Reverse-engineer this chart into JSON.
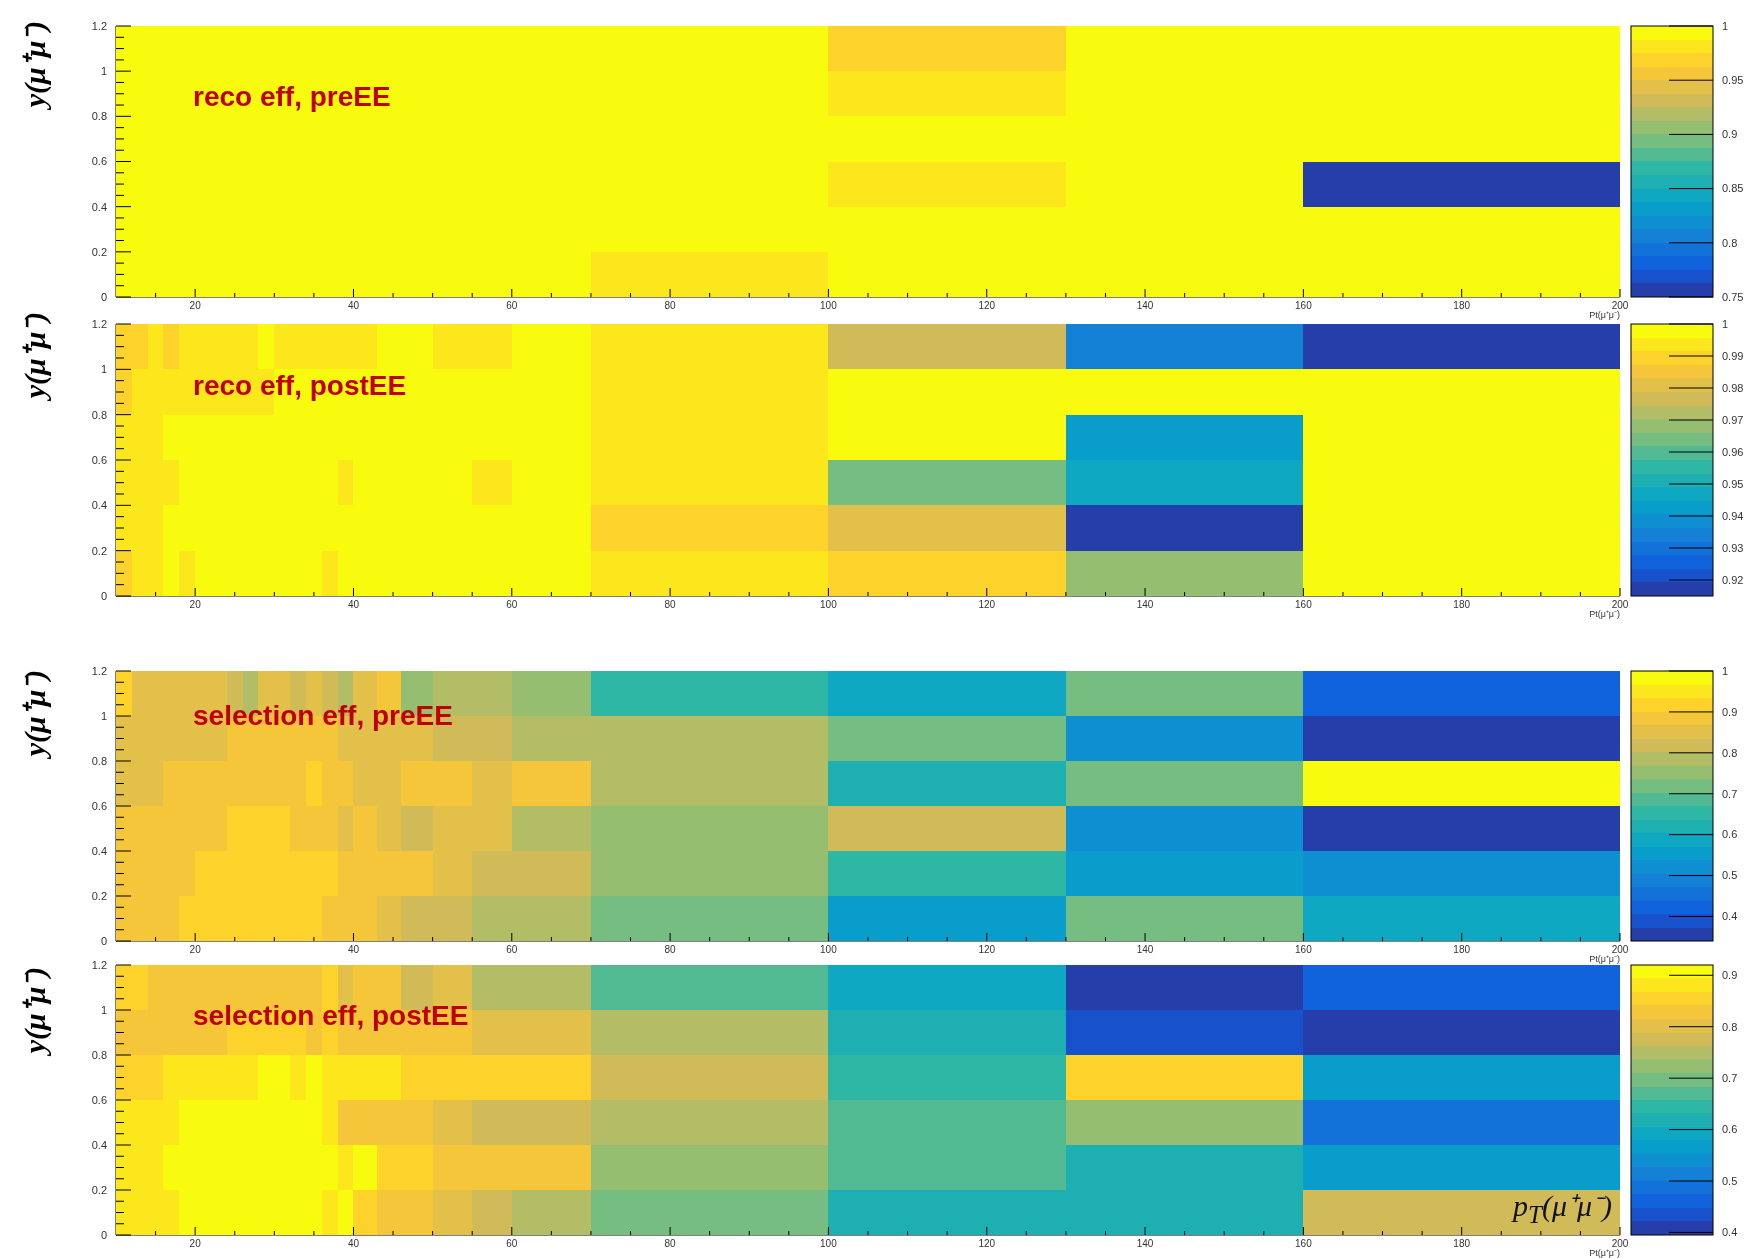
{
  "chart_data": [
    {
      "type": "heatmap",
      "title": "reco eff, preEE",
      "xlabel": "Pt(μ⁺μ⁻)",
      "ylabel": "y(μ⁺μ⁻)",
      "x": [
        11,
        13,
        15,
        17,
        19,
        21,
        23,
        25,
        27,
        29,
        31,
        33,
        35,
        37,
        39,
        41.5,
        44.5,
        48,
        52.5,
        57.5,
        65,
        85,
        115,
        145,
        180
      ],
      "xlim": [
        10,
        200
      ],
      "xticks": [
        {
          "value": 15,
          "label": null
        },
        20,
        {
          "value": 25,
          "label": null
        },
        {
          "value": 30,
          "label": null
        },
        {
          "value": 35,
          "label": null
        },
        40,
        {
          "value": 45,
          "label": null
        },
        {
          "value": 50,
          "label": null
        },
        {
          "value": 55,
          "label": null
        },
        60,
        {
          "value": 65,
          "label": null
        },
        {
          "value": 70,
          "label": null
        },
        {
          "value": 75,
          "label": null
        },
        80,
        {
          "value": 85,
          "label": null
        },
        {
          "value": 90,
          "label": null
        },
        {
          "value": 95,
          "label": null
        },
        100,
        {
          "value": 105,
          "label": null
        },
        {
          "value": 110,
          "label": null
        },
        {
          "value": 115,
          "label": null
        },
        120,
        {
          "value": 125,
          "label": null
        },
        {
          "value": 130,
          "label": null
        },
        {
          "value": 135,
          "label": null
        },
        140,
        {
          "value": 145,
          "label": null
        },
        {
          "value": 150,
          "label": null
        },
        {
          "value": 155,
          "label": null
        },
        160,
        {
          "value": 165,
          "label": null
        },
        {
          "value": 170,
          "label": null
        },
        {
          "value": 175,
          "label": null
        },
        180,
        {
          "value": 185,
          "label": null
        },
        {
          "value": 190,
          "label": null
        },
        {
          "value": 195,
          "label": null
        },
        200
      ],
      "ylim": [
        0,
        1.2
      ],
      "yticks": [
        0,
        {
          "value": 0.05,
          "label": null
        },
        {
          "value": 0.1,
          "label": null
        },
        {
          "value": 0.15,
          "label": null
        },
        0.2,
        {
          "value": 0.25,
          "label": null
        },
        {
          "value": 0.3,
          "label": null
        },
        {
          "value": 0.35,
          "label": null
        },
        0.4,
        {
          "value": 0.45,
          "label": null
        },
        {
          "value": 0.5,
          "label": null
        },
        {
          "value": 0.55,
          "label": null
        },
        0.6,
        {
          "value": 0.65,
          "label": null
        },
        {
          "value": 0.7,
          "label": null
        },
        {
          "value": 0.75,
          "label": null
        },
        0.8,
        {
          "value": 0.85,
          "label": null
        },
        {
          "value": 0.9,
          "label": null
        },
        {
          "value": 0.95,
          "label": null
        },
        1,
        {
          "value": 1.05,
          "label": null
        },
        {
          "value": 1.1,
          "label": null
        },
        {
          "value": 1.15,
          "label": null
        },
        1.2
      ],
      "clim": [
        0.75,
        1
      ],
      "cticks": [
        0.75,
        0.8,
        0.85,
        0.9,
        0.95,
        1
      ],
      "cells": [
        [
          0.994,
          0.994,
          0.994,
          0.994,
          0.994,
          0.994,
          0.994,
          0.994,
          0.994,
          0.994,
          0.994,
          0.994,
          0.994,
          0.994,
          0.994,
          0.994,
          0.994,
          0.994,
          0.994,
          0.994,
          0.994,
          0.994,
          0.969,
          0.994,
          0.994
        ],
        [
          0.994,
          0.994,
          0.994,
          0.994,
          0.994,
          0.994,
          0.994,
          0.994,
          0.994,
          0.994,
          0.994,
          0.994,
          0.994,
          0.994,
          0.994,
          0.994,
          0.994,
          0.994,
          0.994,
          0.994,
          0.994,
          0.994,
          0.981,
          0.994,
          0.994
        ],
        [
          0.994,
          0.994,
          0.994,
          0.994,
          0.994,
          0.994,
          0.994,
          0.994,
          0.994,
          0.994,
          0.994,
          0.994,
          0.994,
          0.994,
          0.994,
          0.994,
          0.994,
          0.994,
          0.994,
          0.994,
          0.994,
          0.994,
          0.994,
          0.994,
          0.994
        ],
        [
          0.994,
          0.994,
          0.994,
          0.994,
          0.994,
          0.994,
          0.994,
          0.994,
          0.994,
          0.994,
          0.994,
          0.994,
          0.994,
          0.994,
          0.994,
          0.994,
          0.994,
          0.994,
          0.994,
          0.994,
          0.994,
          0.994,
          0.981,
          0.994,
          0.756
        ],
        [
          0.994,
          0.994,
          0.994,
          0.994,
          0.994,
          0.994,
          0.994,
          0.994,
          0.994,
          0.994,
          0.994,
          0.994,
          0.994,
          0.994,
          0.994,
          0.994,
          0.994,
          0.994,
          0.994,
          0.994,
          0.994,
          0.994,
          0.994,
          0.994,
          0.994
        ],
        [
          0.994,
          0.994,
          0.994,
          0.994,
          0.994,
          0.994,
          0.994,
          0.994,
          0.994,
          0.994,
          0.994,
          0.994,
          0.994,
          0.994,
          0.994,
          0.994,
          0.994,
          0.994,
          0.994,
          0.994,
          0.994,
          0.981,
          0.994,
          0.994,
          0.994
        ]
      ]
    },
    {
      "type": "heatmap",
      "title": "reco eff, postEE",
      "xlabel": "Pt(μ⁺μ⁻)",
      "ylabel": "y(μ⁺μ⁻)",
      "x": [
        11,
        13,
        15,
        17,
        19,
        21,
        23,
        25,
        27,
        29,
        31,
        33,
        35,
        37,
        39,
        41.5,
        44.5,
        48,
        52.5,
        57.5,
        65,
        85,
        115,
        145,
        180
      ],
      "xlim": [
        10,
        200
      ],
      "xticks": [
        {
          "value": 15,
          "label": null
        },
        20,
        {
          "value": 25,
          "label": null
        },
        {
          "value": 30,
          "label": null
        },
        {
          "value": 35,
          "label": null
        },
        40,
        {
          "value": 45,
          "label": null
        },
        {
          "value": 50,
          "label": null
        },
        {
          "value": 55,
          "label": null
        },
        60,
        {
          "value": 65,
          "label": null
        },
        {
          "value": 70,
          "label": null
        },
        {
          "value": 75,
          "label": null
        },
        80,
        {
          "value": 85,
          "label": null
        },
        {
          "value": 90,
          "label": null
        },
        {
          "value": 95,
          "label": null
        },
        100,
        {
          "value": 105,
          "label": null
        },
        {
          "value": 110,
          "label": null
        },
        {
          "value": 115,
          "label": null
        },
        120,
        {
          "value": 125,
          "label": null
        },
        {
          "value": 130,
          "label": null
        },
        {
          "value": 135,
          "label": null
        },
        140,
        {
          "value": 145,
          "label": null
        },
        {
          "value": 150,
          "label": null
        },
        {
          "value": 155,
          "label": null
        },
        160,
        {
          "value": 165,
          "label": null
        },
        {
          "value": 170,
          "label": null
        },
        {
          "value": 175,
          "label": null
        },
        180,
        {
          "value": 185,
          "label": null
        },
        {
          "value": 190,
          "label": null
        },
        {
          "value": 195,
          "label": null
        },
        200
      ],
      "ylim": [
        0,
        1.2
      ],
      "yticks": [
        0,
        {
          "value": 0.05,
          "label": null
        },
        {
          "value": 0.1,
          "label": null
        },
        {
          "value": 0.15,
          "label": null
        },
        0.2,
        {
          "value": 0.25,
          "label": null
        },
        {
          "value": 0.3,
          "label": null
        },
        {
          "value": 0.35,
          "label": null
        },
        0.4,
        {
          "value": 0.45,
          "label": null
        },
        {
          "value": 0.5,
          "label": null
        },
        {
          "value": 0.55,
          "label": null
        },
        0.6,
        {
          "value": 0.65,
          "label": null
        },
        {
          "value": 0.7,
          "label": null
        },
        {
          "value": 0.75,
          "label": null
        },
        0.8,
        {
          "value": 0.85,
          "label": null
        },
        {
          "value": 0.9,
          "label": null
        },
        {
          "value": 0.95,
          "label": null
        },
        1,
        {
          "value": 1.05,
          "label": null
        },
        {
          "value": 1.1,
          "label": null
        },
        {
          "value": 1.15,
          "label": null
        },
        1.2
      ],
      "clim": [
        0.915,
        1
      ],
      "cticks": [
        0.92,
        0.93,
        0.94,
        0.95,
        0.96,
        0.97,
        0.98,
        0.99,
        1
      ],
      "cells": [
        [
          0.989,
          0.989,
          0.994,
          0.989,
          0.994,
          0.994,
          0.994,
          0.994,
          0.994,
          0.998,
          0.994,
          0.994,
          0.994,
          0.994,
          0.994,
          0.994,
          0.998,
          0.998,
          0.994,
          0.994,
          0.998,
          0.994,
          0.977,
          0.934,
          0.917
        ],
        [
          0.989,
          0.994,
          0.994,
          0.994,
          0.994,
          0.994,
          0.994,
          0.994,
          0.994,
          0.994,
          0.998,
          0.998,
          0.998,
          0.998,
          0.998,
          0.998,
          0.998,
          0.998,
          0.998,
          0.998,
          0.998,
          0.994,
          0.998,
          0.998,
          0.998
        ],
        [
          0.994,
          0.994,
          0.994,
          0.998,
          0.998,
          0.998,
          0.998,
          0.998,
          0.998,
          0.998,
          0.998,
          0.998,
          0.998,
          0.998,
          0.998,
          0.998,
          0.998,
          0.998,
          0.998,
          0.998,
          0.998,
          0.994,
          0.998,
          0.943,
          0.998
        ],
        [
          0.994,
          0.994,
          0.994,
          0.994,
          0.998,
          0.998,
          0.998,
          0.998,
          0.998,
          0.998,
          0.998,
          0.998,
          0.998,
          0.998,
          0.994,
          0.998,
          0.998,
          0.998,
          0.998,
          0.994,
          0.998,
          0.994,
          0.964,
          0.947,
          0.998
        ],
        [
          0.994,
          0.994,
          0.994,
          0.998,
          0.998,
          0.998,
          0.998,
          0.998,
          0.998,
          0.998,
          0.998,
          0.998,
          0.998,
          0.998,
          0.998,
          0.998,
          0.998,
          0.998,
          0.998,
          0.998,
          0.998,
          0.989,
          0.981,
          0.917,
          0.998
        ],
        [
          0.989,
          0.994,
          0.994,
          0.998,
          0.994,
          0.998,
          0.998,
          0.998,
          0.998,
          0.998,
          0.998,
          0.998,
          0.998,
          0.994,
          0.998,
          0.998,
          0.998,
          0.998,
          0.998,
          0.998,
          0.998,
          0.994,
          0.989,
          0.968,
          0.998
        ]
      ]
    },
    {
      "type": "heatmap",
      "title": "selection eff, preEE",
      "xlabel": "Pt(μ⁺μ⁻)",
      "ylabel": "y(μ⁺μ⁻)",
      "x": [
        11,
        13,
        15,
        17,
        19,
        21,
        23,
        25,
        27,
        29,
        31,
        33,
        35,
        37,
        39,
        41.5,
        44.5,
        48,
        52.5,
        57.5,
        65,
        85,
        115,
        145,
        180
      ],
      "xlim": [
        10,
        200
      ],
      "xticks": [
        {
          "value": 15,
          "label": null
        },
        20,
        {
          "value": 25,
          "label": null
        },
        {
          "value": 30,
          "label": null
        },
        {
          "value": 35,
          "label": null
        },
        40,
        {
          "value": 45,
          "label": null
        },
        {
          "value": 50,
          "label": null
        },
        {
          "value": 55,
          "label": null
        },
        60,
        {
          "value": 65,
          "label": null
        },
        {
          "value": 70,
          "label": null
        },
        {
          "value": 75,
          "label": null
        },
        80,
        {
          "value": 85,
          "label": null
        },
        {
          "value": 90,
          "label": null
        },
        {
          "value": 95,
          "label": null
        },
        100,
        {
          "value": 105,
          "label": null
        },
        {
          "value": 110,
          "label": null
        },
        {
          "value": 115,
          "label": null
        },
        120,
        {
          "value": 125,
          "label": null
        },
        {
          "value": 130,
          "label": null
        },
        {
          "value": 135,
          "label": null
        },
        140,
        {
          "value": 145,
          "label": null
        },
        {
          "value": 150,
          "label": null
        },
        {
          "value": 155,
          "label": null
        },
        160,
        {
          "value": 165,
          "label": null
        },
        {
          "value": 170,
          "label": null
        },
        {
          "value": 175,
          "label": null
        },
        180,
        {
          "value": 185,
          "label": null
        },
        {
          "value": 190,
          "label": null
        },
        {
          "value": 195,
          "label": null
        },
        200
      ],
      "ylim": [
        0,
        1.2
      ],
      "yticks": [
        0,
        {
          "value": 0.05,
          "label": null
        },
        {
          "value": 0.1,
          "label": null
        },
        {
          "value": 0.15,
          "label": null
        },
        0.2,
        {
          "value": 0.25,
          "label": null
        },
        {
          "value": 0.3,
          "label": null
        },
        {
          "value": 0.35,
          "label": null
        },
        0.4,
        {
          "value": 0.45,
          "label": null
        },
        {
          "value": 0.5,
          "label": null
        },
        {
          "value": 0.55,
          "label": null
        },
        0.6,
        {
          "value": 0.65,
          "label": null
        },
        {
          "value": 0.7,
          "label": null
        },
        {
          "value": 0.75,
          "label": null
        },
        0.8,
        {
          "value": 0.85,
          "label": null
        },
        {
          "value": 0.9,
          "label": null
        },
        {
          "value": 0.95,
          "label": null
        },
        1,
        {
          "value": 1.05,
          "label": null
        },
        {
          "value": 1.1,
          "label": null
        },
        {
          "value": 1.15,
          "label": null
        },
        1.2
      ],
      "clim": [
        0.34,
        1
      ],
      "cticks": [
        0.4,
        0.5,
        0.6,
        0.7,
        0.8,
        0.9,
        1
      ],
      "cells": [
        [
          0.918,
          0.852,
          0.852,
          0.852,
          0.852,
          0.852,
          0.852,
          0.819,
          0.786,
          0.852,
          0.852,
          0.819,
          0.852,
          0.819,
          0.786,
          0.852,
          0.885,
          0.753,
          0.786,
          0.786,
          0.753,
          0.654,
          0.588,
          0.72,
          0.423
        ],
        [
          0.852,
          0.852,
          0.852,
          0.852,
          0.852,
          0.852,
          0.852,
          0.885,
          0.885,
          0.885,
          0.885,
          0.885,
          0.885,
          0.885,
          0.852,
          0.852,
          0.852,
          0.852,
          0.819,
          0.819,
          0.786,
          0.786,
          0.72,
          0.522,
          0.357
        ],
        [
          0.852,
          0.852,
          0.852,
          0.885,
          0.885,
          0.885,
          0.885,
          0.885,
          0.885,
          0.885,
          0.885,
          0.885,
          0.918,
          0.885,
          0.885,
          0.852,
          0.852,
          0.885,
          0.885,
          0.852,
          0.885,
          0.786,
          0.621,
          0.72,
          0.984
        ],
        [
          0.885,
          0.885,
          0.885,
          0.885,
          0.885,
          0.885,
          0.885,
          0.918,
          0.918,
          0.918,
          0.918,
          0.885,
          0.885,
          0.885,
          0.852,
          0.885,
          0.852,
          0.819,
          0.852,
          0.852,
          0.786,
          0.753,
          0.819,
          0.522,
          0.357
        ],
        [
          0.885,
          0.885,
          0.885,
          0.885,
          0.885,
          0.918,
          0.918,
          0.918,
          0.918,
          0.918,
          0.918,
          0.918,
          0.918,
          0.918,
          0.885,
          0.885,
          0.885,
          0.885,
          0.852,
          0.819,
          0.819,
          0.753,
          0.654,
          0.555,
          0.522
        ],
        [
          0.885,
          0.885,
          0.885,
          0.885,
          0.918,
          0.918,
          0.918,
          0.918,
          0.918,
          0.918,
          0.918,
          0.918,
          0.918,
          0.885,
          0.885,
          0.885,
          0.852,
          0.819,
          0.819,
          0.786,
          0.786,
          0.72,
          0.555,
          0.72,
          0.588
        ]
      ]
    },
    {
      "type": "heatmap",
      "title": "selection eff, postEE",
      "xlabel": "Pt(μ⁺μ⁻)",
      "ylabel": "y(μ⁺μ⁻)",
      "annotations": [
        "p$_{T}$(μ⁺μ⁻)"
      ],
      "x": [
        11,
        13,
        15,
        17,
        19,
        21,
        23,
        25,
        27,
        29,
        31,
        33,
        35,
        37,
        39,
        41.5,
        44.5,
        48,
        52.5,
        57.5,
        65,
        85,
        115,
        145,
        180
      ],
      "xlim": [
        10,
        200
      ],
      "xticks": [
        {
          "value": 15,
          "label": null
        },
        20,
        {
          "value": 25,
          "label": null
        },
        {
          "value": 30,
          "label": null
        },
        {
          "value": 35,
          "label": null
        },
        40,
        {
          "value": 45,
          "label": null
        },
        {
          "value": 50,
          "label": null
        },
        {
          "value": 55,
          "label": null
        },
        60,
        {
          "value": 65,
          "label": null
        },
        {
          "value": 70,
          "label": null
        },
        {
          "value": 75,
          "label": null
        },
        80,
        {
          "value": 85,
          "label": null
        },
        {
          "value": 90,
          "label": null
        },
        {
          "value": 95,
          "label": null
        },
        100,
        {
          "value": 105,
          "label": null
        },
        {
          "value": 110,
          "label": null
        },
        {
          "value": 115,
          "label": null
        },
        120,
        {
          "value": 125,
          "label": null
        },
        {
          "value": 130,
          "label": null
        },
        {
          "value": 135,
          "label": null
        },
        140,
        {
          "value": 145,
          "label": null
        },
        {
          "value": 150,
          "label": null
        },
        {
          "value": 155,
          "label": null
        },
        160,
        {
          "value": 165,
          "label": null
        },
        {
          "value": 170,
          "label": null
        },
        {
          "value": 175,
          "label": null
        },
        180,
        {
          "value": 185,
          "label": null
        },
        {
          "value": 190,
          "label": null
        },
        {
          "value": 195,
          "label": null
        },
        200
      ],
      "ylim": [
        0,
        1.2
      ],
      "yticks": [
        0,
        {
          "value": 0.05,
          "label": null
        },
        {
          "value": 0.1,
          "label": null
        },
        {
          "value": 0.15,
          "label": null
        },
        0.2,
        {
          "value": 0.25,
          "label": null
        },
        {
          "value": 0.3,
          "label": null
        },
        {
          "value": 0.35,
          "label": null
        },
        0.4,
        {
          "value": 0.45,
          "label": null
        },
        {
          "value": 0.5,
          "label": null
        },
        {
          "value": 0.55,
          "label": null
        },
        0.6,
        {
          "value": 0.65,
          "label": null
        },
        {
          "value": 0.7,
          "label": null
        },
        {
          "value": 0.75,
          "label": null
        },
        0.8,
        {
          "value": 0.85,
          "label": null
        },
        {
          "value": 0.9,
          "label": null
        },
        {
          "value": 0.95,
          "label": null
        },
        1,
        {
          "value": 1.05,
          "label": null
        },
        {
          "value": 1.1,
          "label": null
        },
        {
          "value": 1.15,
          "label": null
        },
        1.2
      ],
      "clim": [
        0.395,
        0.92
      ],
      "cticks": [
        0.4,
        0.5,
        0.6,
        0.7,
        0.8,
        0.9
      ],
      "cells": [
        [
          0.854,
          0.854,
          0.828,
          0.828,
          0.828,
          0.828,
          0.828,
          0.828,
          0.828,
          0.828,
          0.828,
          0.828,
          0.828,
          0.854,
          0.802,
          0.828,
          0.828,
          0.776,
          0.802,
          0.749,
          0.749,
          0.671,
          0.592,
          0.408,
          0.461
        ],
        [
          0.828,
          0.828,
          0.828,
          0.828,
          0.828,
          0.828,
          0.828,
          0.854,
          0.854,
          0.854,
          0.854,
          0.854,
          0.828,
          0.854,
          0.828,
          0.828,
          0.828,
          0.828,
          0.828,
          0.802,
          0.802,
          0.749,
          0.618,
          0.434,
          0.408
        ],
        [
          0.854,
          0.854,
          0.854,
          0.881,
          0.881,
          0.881,
          0.881,
          0.881,
          0.881,
          0.907,
          0.907,
          0.881,
          0.907,
          0.881,
          0.881,
          0.881,
          0.881,
          0.854,
          0.854,
          0.854,
          0.854,
          0.776,
          0.644,
          0.854,
          0.566
        ],
        [
          0.881,
          0.881,
          0.881,
          0.881,
          0.907,
          0.907,
          0.907,
          0.907,
          0.907,
          0.907,
          0.907,
          0.907,
          0.907,
          0.881,
          0.828,
          0.828,
          0.828,
          0.828,
          0.802,
          0.776,
          0.776,
          0.749,
          0.671,
          0.723,
          0.487
        ],
        [
          0.881,
          0.881,
          0.881,
          0.907,
          0.907,
          0.907,
          0.907,
          0.907,
          0.907,
          0.907,
          0.907,
          0.907,
          0.907,
          0.907,
          0.881,
          0.907,
          0.854,
          0.854,
          0.828,
          0.828,
          0.828,
          0.723,
          0.671,
          0.618,
          0.566
        ],
        [
          0.881,
          0.881,
          0.881,
          0.881,
          0.907,
          0.907,
          0.907,
          0.907,
          0.907,
          0.907,
          0.907,
          0.907,
          0.907,
          0.881,
          0.907,
          0.854,
          0.828,
          0.828,
          0.802,
          0.776,
          0.749,
          0.697,
          0.618,
          0.618,
          0.776
        ]
      ]
    }
  ]
}
